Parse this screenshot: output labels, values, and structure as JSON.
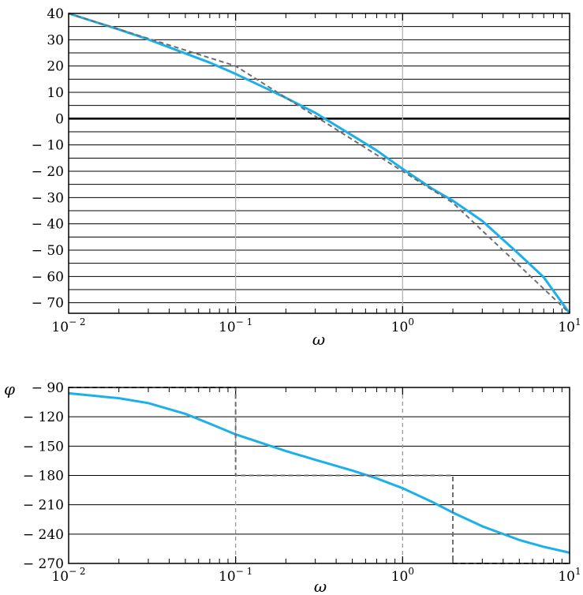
{
  "colors": {
    "exact_curve": "#1ab0ea",
    "asymptote": "#6e6e6e",
    "grid_major": "#000000",
    "grid_decade": "#b4b4b4",
    "zero_line": "#000000"
  },
  "chart_data": [
    {
      "id": "magnitude",
      "type": "line",
      "title": "",
      "xlabel": "ω",
      "ylabel": "",
      "xscale": "log",
      "xlim": [
        0.01,
        10
      ],
      "ylim": [
        -74,
        40
      ],
      "yticks": [
        40,
        30,
        20,
        10,
        0,
        -10,
        -20,
        -30,
        -40,
        -50,
        -60,
        -70
      ],
      "ytick_labels": [
        "40",
        "30",
        "20",
        "10",
        "0",
        "− 10",
        "− 20",
        "− 30",
        "− 40",
        "− 50",
        "− 60",
        "− 70"
      ],
      "xtick_labels": [
        {
          "value": 0.01,
          "base": "10",
          "exp": "− 2"
        },
        {
          "value": 0.1,
          "base": "10",
          "exp": "− 1"
        },
        {
          "value": 1,
          "base": "10",
          "exp": "0"
        },
        {
          "value": 10,
          "base": "10",
          "exp": "1"
        }
      ],
      "grid": true,
      "series": [
        {
          "style": "solid",
          "x": [
            0.01,
            0.015,
            0.02,
            0.03,
            0.05,
            0.07,
            0.1,
            0.15,
            0.2,
            0.3,
            0.5,
            0.7,
            1,
            1.5,
            2,
            3,
            5,
            7,
            10
          ],
          "y": [
            40,
            36.4,
            33.9,
            30.1,
            24.8,
            21.3,
            17.0,
            11.7,
            7.9,
            2.2,
            -6.4,
            -12.1,
            -19.1,
            -26.6,
            -31.2,
            -38.9,
            -51.6,
            -60.3,
            -74
          ]
        },
        {
          "style": "dashed",
          "x": [
            0.01,
            0.1,
            1,
            2,
            10
          ],
          "y": [
            40,
            20,
            -20,
            -32,
            -74
          ]
        }
      ]
    },
    {
      "id": "phase",
      "type": "line",
      "title": "",
      "xlabel": "ω",
      "ylabel": "φ",
      "xscale": "log",
      "xlim": [
        0.01,
        10
      ],
      "ylim": [
        -270,
        -90
      ],
      "yticks": [
        -90,
        -120,
        -150,
        -180,
        -210,
        -240,
        -270
      ],
      "ytick_labels": [
        "− 90",
        "− 120",
        "− 150",
        "− 180",
        "− 210",
        "− 240",
        "− 270"
      ],
      "xtick_labels": [
        {
          "value": 0.01,
          "base": "10",
          "exp": "− 2"
        },
        {
          "value": 0.1,
          "base": "10",
          "exp": "− 1"
        },
        {
          "value": 1,
          "base": "10",
          "exp": "0"
        },
        {
          "value": 10,
          "base": "10",
          "exp": "1"
        }
      ],
      "grid": true,
      "series": [
        {
          "style": "solid",
          "x": [
            0.01,
            0.02,
            0.03,
            0.05,
            0.07,
            0.1,
            0.15,
            0.2,
            0.3,
            0.5,
            0.7,
            1,
            1.5,
            2,
            3,
            5,
            7,
            10
          ],
          "y": [
            -96,
            -101,
            -106,
            -117,
            -127,
            -138,
            -148,
            -155,
            -164,
            -175,
            -183,
            -193,
            -207,
            -218,
            -232,
            -246,
            -253,
            -259
          ]
        },
        {
          "style": "dashed",
          "x": [
            0.01,
            0.1,
            0.1,
            2,
            2,
            10
          ],
          "y": [
            -90,
            -90,
            -180,
            -180,
            -270,
            -270
          ]
        }
      ]
    }
  ]
}
